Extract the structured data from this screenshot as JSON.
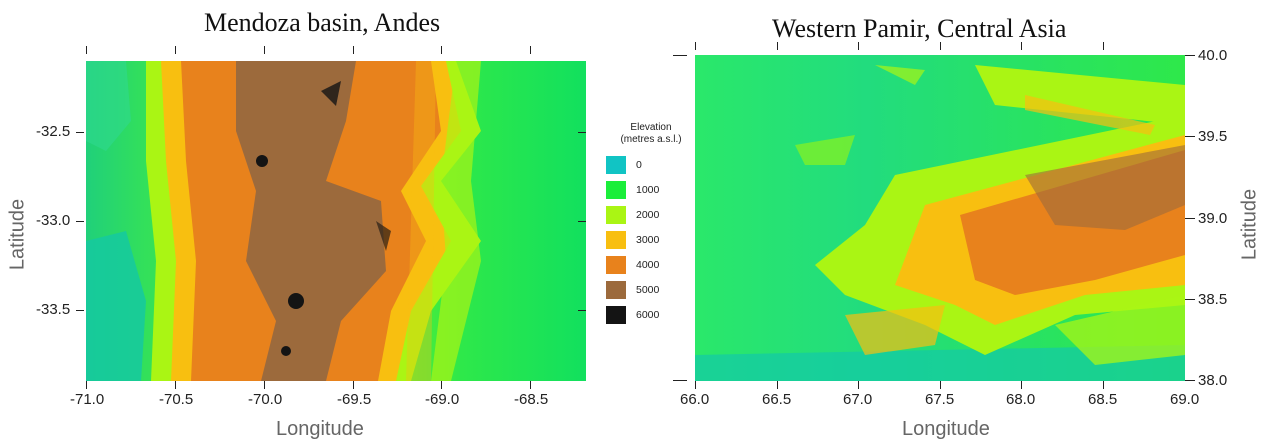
{
  "left_map": {
    "title": "Mendoza basin, Andes",
    "xlabel": "Longitude",
    "ylabel": "Latitude",
    "x_ticks": [
      "-71.0",
      "-70.5",
      "-70.0",
      "-69.5",
      "-69.0",
      "-68.5"
    ],
    "y_ticks": [
      "-32.5",
      "-33.0",
      "-33.5"
    ],
    "xlim": [
      -71.0,
      -68.2
    ],
    "ylim": [
      -33.9,
      -32.1
    ]
  },
  "right_map": {
    "title": "Western Pamir, Central Asia",
    "xlabel": "Longitude",
    "ylabel": "Latitude",
    "x_ticks": [
      "66.0",
      "66.5",
      "67.0",
      "67.5",
      "68.0",
      "68.5",
      "69.0"
    ],
    "y_ticks": [
      "40.0",
      "39.5",
      "39.0",
      "38.5",
      "38.0"
    ],
    "xlim": [
      66.0,
      69.0
    ],
    "ylim": [
      38.0,
      40.0
    ]
  },
  "legend": {
    "title_line1": "Elevation",
    "title_line2": "(metres a.s.l.)",
    "items": [
      {
        "label": "0",
        "color": "#11c4c4"
      },
      {
        "label": "1000",
        "color": "#1aee3a"
      },
      {
        "label": "2000",
        "color": "#aaf514"
      },
      {
        "label": "3000",
        "color": "#f8bf10"
      },
      {
        "label": "4000",
        "color": "#e8821c"
      },
      {
        "label": "5000",
        "color": "#9c6a3c"
      },
      {
        "label": "6000",
        "color": "#141414"
      }
    ]
  }
}
